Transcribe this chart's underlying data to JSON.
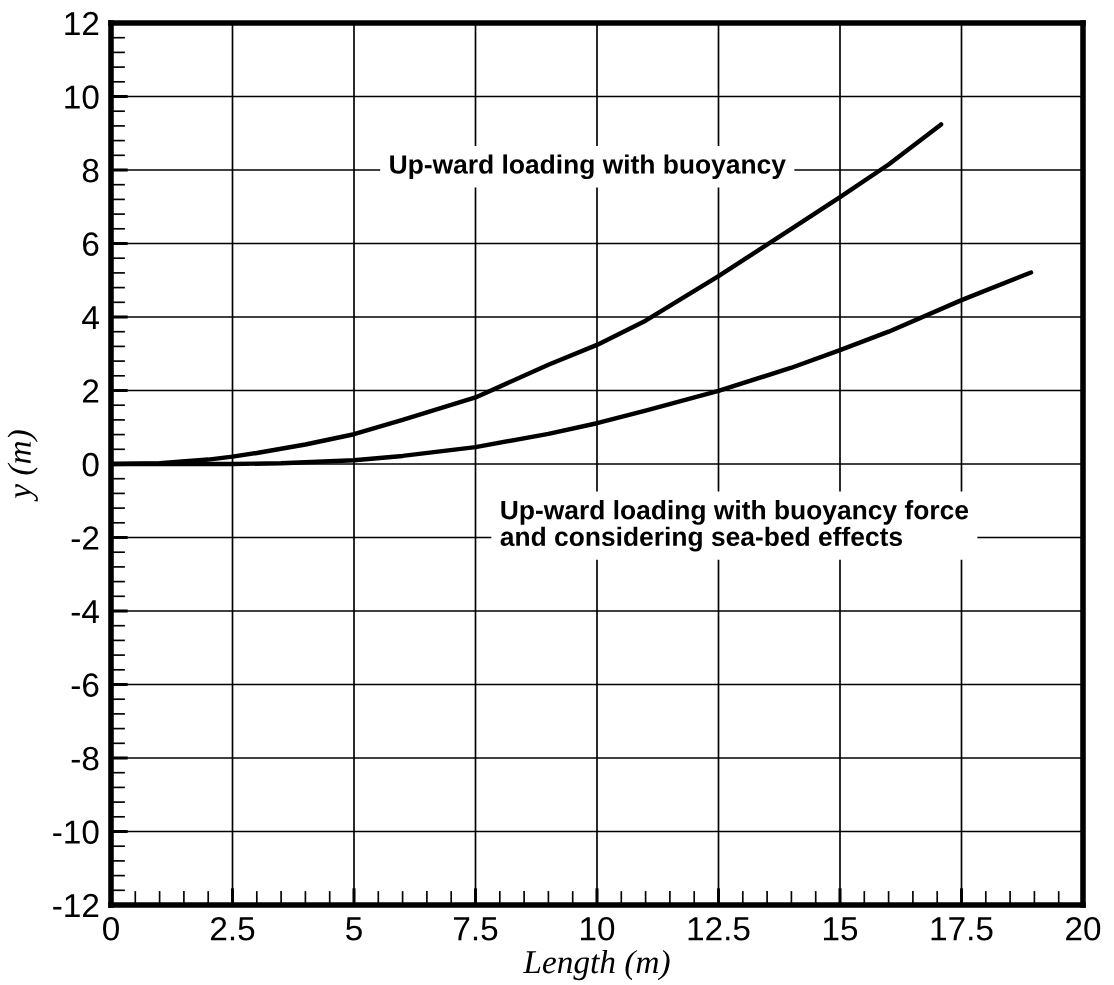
{
  "chart_data": {
    "type": "line",
    "xlabel": "Length (m)",
    "ylabel": "y (m)",
    "xlim": [
      0,
      20
    ],
    "xticks": [
      0,
      2.5,
      5,
      7.5,
      10,
      12.5,
      15,
      17.5,
      20
    ],
    "ylim": [
      -12,
      12
    ],
    "yticks": [
      -12,
      -10,
      -8,
      -6,
      -4,
      -2,
      0,
      2,
      4,
      6,
      8,
      10,
      12
    ],
    "grid": true,
    "line_style": "solid",
    "marker": "none",
    "series": [
      {
        "color": "#000000",
        "x": [
          0,
          1,
          2,
          2.5,
          3,
          4,
          5,
          6,
          7.5,
          9,
          10,
          11,
          12.5,
          14,
          15,
          16,
          17.08
        ],
        "values": [
          0,
          0.02,
          0.12,
          0.2,
          0.3,
          0.53,
          0.81,
          1.2,
          1.81,
          2.7,
          3.24,
          3.9,
          5.11,
          6.4,
          7.26,
          8.15,
          9.24
        ]
      },
      {
        "color": "#000000",
        "x": [
          0,
          2.5,
          3.5,
          5,
          6,
          7.5,
          9,
          10,
          11,
          12.5,
          14,
          15,
          16,
          17.5,
          18.93
        ],
        "values": [
          0,
          0,
          0.02,
          0.1,
          0.22,
          0.46,
          0.82,
          1.11,
          1.45,
          1.99,
          2.62,
          3.1,
          3.6,
          4.46,
          5.21
        ]
      }
    ],
    "annotations": [
      "Up-ward loading with buoyancy",
      "Up-ward loading with buoyancy force\nand considering sea-bed effects"
    ]
  }
}
